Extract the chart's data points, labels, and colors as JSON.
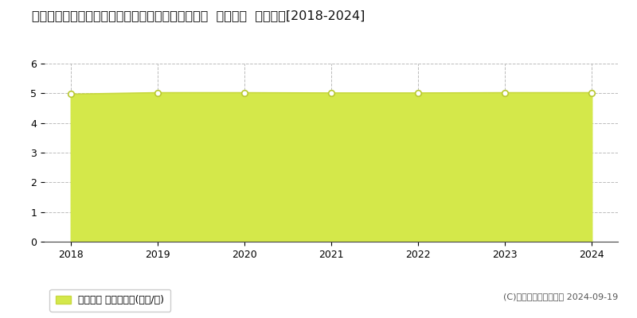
{
  "title": "福島県双葉郡浪江町大字幾世橋字斉藤屋敷７０番２  基準地価  地価推移[2018-2024]",
  "years": [
    2018,
    2019,
    2020,
    2021,
    2022,
    2023,
    2024
  ],
  "values": [
    4.97,
    5.02,
    5.02,
    5.01,
    5.01,
    5.02,
    5.02
  ],
  "line_color": "#c8d840",
  "fill_color": "#d4e84a",
  "marker_color": "#ffffff",
  "marker_edge_color": "#b8c830",
  "ylim": [
    0,
    6
  ],
  "yticks": [
    0,
    1,
    2,
    3,
    4,
    5,
    6
  ],
  "xlim": [
    2017.7,
    2024.3
  ],
  "grid_color": "#bbbbbb",
  "background_color": "#ffffff",
  "legend_label": "基準地価 平均坪単価(万円/坪)",
  "copyright_text": "(C)土地価格ドットコム 2024-09-19",
  "title_fontsize": 11.5,
  "axis_fontsize": 9,
  "legend_fontsize": 9
}
